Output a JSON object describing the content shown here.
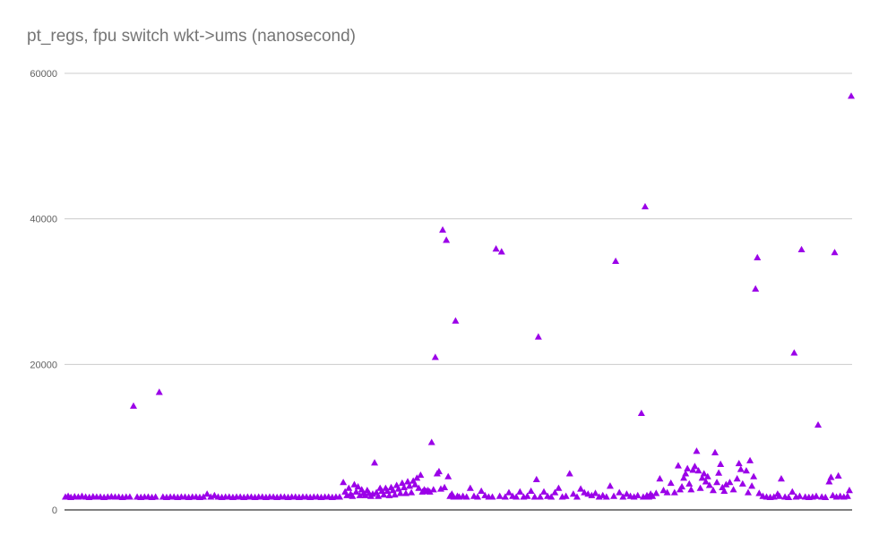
{
  "chart_data": {
    "type": "scatter",
    "title": "pt_regs, fpu switch wkt->ums (nanosecond)",
    "xlabel": "",
    "ylabel": "",
    "ylim": [
      0,
      60000
    ],
    "yticks": [
      "0",
      "20000",
      "40000",
      "60000"
    ],
    "grid": true,
    "legend": "none",
    "marker": "triangle",
    "color": "#9b00e8",
    "series": [
      {
        "values": [
          [
            0,
            1800
          ],
          [
            3,
            1900
          ],
          [
            6,
            1750
          ],
          [
            10,
            1850
          ],
          [
            14,
            1800
          ],
          [
            18,
            1900
          ],
          [
            22,
            1800
          ],
          [
            26,
            1750
          ],
          [
            30,
            1850
          ],
          [
            34,
            1800
          ],
          [
            38,
            1800
          ],
          [
            42,
            1750
          ],
          [
            46,
            1800
          ],
          [
            50,
            1850
          ],
          [
            54,
            1800
          ],
          [
            58,
            1800
          ],
          [
            62,
            1750
          ],
          [
            66,
            1800
          ],
          [
            70,
            1800
          ],
          [
            74,
            14300
          ],
          [
            78,
            1800
          ],
          [
            82,
            1750
          ],
          [
            86,
            1800
          ],
          [
            90,
            1800
          ],
          [
            94,
            1750
          ],
          [
            98,
            1800
          ],
          [
            102,
            16200
          ],
          [
            106,
            1800
          ],
          [
            110,
            1750
          ],
          [
            114,
            1800
          ],
          [
            118,
            1800
          ],
          [
            122,
            1750
          ],
          [
            126,
            1800
          ],
          [
            130,
            1800
          ],
          [
            134,
            1750
          ],
          [
            138,
            1800
          ],
          [
            142,
            1800
          ],
          [
            146,
            1750
          ],
          [
            150,
            1800
          ],
          [
            154,
            2200
          ],
          [
            158,
            1800
          ],
          [
            162,
            2000
          ],
          [
            166,
            1800
          ],
          [
            170,
            1750
          ],
          [
            174,
            1800
          ],
          [
            178,
            1800
          ],
          [
            182,
            1750
          ],
          [
            186,
            1800
          ],
          [
            190,
            1800
          ],
          [
            194,
            1750
          ],
          [
            198,
            1800
          ],
          [
            202,
            1800
          ],
          [
            206,
            1750
          ],
          [
            210,
            1800
          ],
          [
            214,
            1800
          ],
          [
            218,
            1750
          ],
          [
            222,
            1800
          ],
          [
            226,
            1800
          ],
          [
            230,
            1750
          ],
          [
            234,
            1800
          ],
          [
            238,
            1800
          ],
          [
            242,
            1750
          ],
          [
            246,
            1800
          ],
          [
            250,
            1800
          ],
          [
            254,
            1750
          ],
          [
            258,
            1800
          ],
          [
            262,
            1800
          ],
          [
            266,
            1750
          ],
          [
            270,
            1800
          ],
          [
            274,
            1800
          ],
          [
            278,
            1750
          ],
          [
            282,
            1800
          ],
          [
            286,
            1800
          ],
          [
            290,
            1750
          ],
          [
            294,
            1800
          ],
          [
            298,
            1800
          ],
          [
            302,
            3800
          ],
          [
            304,
            2500
          ],
          [
            306,
            2000
          ],
          [
            308,
            3000
          ],
          [
            310,
            2200
          ],
          [
            312,
            1900
          ],
          [
            314,
            3500
          ],
          [
            316,
            2500
          ],
          [
            318,
            3200
          ],
          [
            320,
            2000
          ],
          [
            322,
            2800
          ],
          [
            324,
            2300
          ],
          [
            326,
            2000
          ],
          [
            328,
            2700
          ],
          [
            330,
            2300
          ],
          [
            332,
            1900
          ],
          [
            334,
            2200
          ],
          [
            336,
            6500
          ],
          [
            338,
            2400
          ],
          [
            340,
            1900
          ],
          [
            342,
            3000
          ],
          [
            344,
            2600
          ],
          [
            346,
            2100
          ],
          [
            348,
            3000
          ],
          [
            350,
            2600
          ],
          [
            352,
            2000
          ],
          [
            354,
            3100
          ],
          [
            356,
            2700
          ],
          [
            358,
            2100
          ],
          [
            360,
            3400
          ],
          [
            362,
            2900
          ],
          [
            364,
            2300
          ],
          [
            366,
            3700
          ],
          [
            368,
            3100
          ],
          [
            370,
            2300
          ],
          [
            372,
            3900
          ],
          [
            374,
            3300
          ],
          [
            376,
            2400
          ],
          [
            378,
            4000
          ],
          [
            380,
            3500
          ],
          [
            382,
            4400
          ],
          [
            384,
            3000
          ],
          [
            386,
            4800
          ],
          [
            388,
            2500
          ],
          [
            390,
            2800
          ],
          [
            392,
            2600
          ],
          [
            394,
            2700
          ],
          [
            396,
            2500
          ],
          [
            398,
            9300
          ],
          [
            400,
            2800
          ],
          [
            402,
            21000
          ],
          [
            404,
            5000
          ],
          [
            406,
            5300
          ],
          [
            408,
            2900
          ],
          [
            410,
            38500
          ],
          [
            412,
            3100
          ],
          [
            414,
            37100
          ],
          [
            416,
            4600
          ],
          [
            418,
            1900
          ],
          [
            420,
            2200
          ],
          [
            422,
            1800
          ],
          [
            424,
            26000
          ],
          [
            426,
            1900
          ],
          [
            428,
            1800
          ],
          [
            432,
            1900
          ],
          [
            436,
            1800
          ],
          [
            440,
            3000
          ],
          [
            444,
            1900
          ],
          [
            448,
            1800
          ],
          [
            452,
            2600
          ],
          [
            456,
            2000
          ],
          [
            460,
            1800
          ],
          [
            464,
            1800
          ],
          [
            468,
            35900
          ],
          [
            472,
            1900
          ],
          [
            474,
            35500
          ],
          [
            478,
            1800
          ],
          [
            482,
            2400
          ],
          [
            486,
            1900
          ],
          [
            490,
            1800
          ],
          [
            494,
            2500
          ],
          [
            498,
            1800
          ],
          [
            502,
            1900
          ],
          [
            506,
            2600
          ],
          [
            510,
            1800
          ],
          [
            512,
            4200
          ],
          [
            514,
            23800
          ],
          [
            516,
            1800
          ],
          [
            520,
            2500
          ],
          [
            524,
            1900
          ],
          [
            528,
            1800
          ],
          [
            532,
            2400
          ],
          [
            536,
            3000
          ],
          [
            540,
            1800
          ],
          [
            544,
            1900
          ],
          [
            548,
            5000
          ],
          [
            552,
            2200
          ],
          [
            556,
            1800
          ],
          [
            560,
            2900
          ],
          [
            564,
            2400
          ],
          [
            568,
            2200
          ],
          [
            572,
            2000
          ],
          [
            576,
            2300
          ],
          [
            580,
            1800
          ],
          [
            584,
            2000
          ],
          [
            588,
            1800
          ],
          [
            592,
            3300
          ],
          [
            596,
            1900
          ],
          [
            598,
            34200
          ],
          [
            602,
            2400
          ],
          [
            606,
            1800
          ],
          [
            610,
            2200
          ],
          [
            614,
            1900
          ],
          [
            618,
            1800
          ],
          [
            622,
            2000
          ],
          [
            626,
            13300
          ],
          [
            628,
            1800
          ],
          [
            630,
            41700
          ],
          [
            632,
            2000
          ],
          [
            634,
            1800
          ],
          [
            636,
            2200
          ],
          [
            638,
            1900
          ],
          [
            642,
            2300
          ],
          [
            646,
            4300
          ],
          [
            650,
            2700
          ],
          [
            654,
            2400
          ],
          [
            658,
            3700
          ],
          [
            662,
            2400
          ],
          [
            666,
            6100
          ],
          [
            668,
            2800
          ],
          [
            670,
            3200
          ],
          [
            672,
            4400
          ],
          [
            674,
            5000
          ],
          [
            676,
            5700
          ],
          [
            678,
            3600
          ],
          [
            680,
            2800
          ],
          [
            682,
            5500
          ],
          [
            684,
            6000
          ],
          [
            686,
            8100
          ],
          [
            688,
            5400
          ],
          [
            690,
            3000
          ],
          [
            692,
            4400
          ],
          [
            694,
            5000
          ],
          [
            696,
            3900
          ],
          [
            698,
            4600
          ],
          [
            700,
            3400
          ],
          [
            704,
            2700
          ],
          [
            706,
            7900
          ],
          [
            708,
            3800
          ],
          [
            710,
            5100
          ],
          [
            712,
            6300
          ],
          [
            714,
            3100
          ],
          [
            716,
            2600
          ],
          [
            718,
            3500
          ],
          [
            722,
            3800
          ],
          [
            726,
            2800
          ],
          [
            730,
            4300
          ],
          [
            732,
            6400
          ],
          [
            734,
            5600
          ],
          [
            736,
            3600
          ],
          [
            740,
            5400
          ],
          [
            742,
            2400
          ],
          [
            744,
            6800
          ],
          [
            746,
            3300
          ],
          [
            748,
            4600
          ],
          [
            750,
            30400
          ],
          [
            752,
            34700
          ],
          [
            754,
            2300
          ],
          [
            758,
            1900
          ],
          [
            762,
            1800
          ],
          [
            766,
            1750
          ],
          [
            770,
            1800
          ],
          [
            774,
            2200
          ],
          [
            776,
            1900
          ],
          [
            778,
            4300
          ],
          [
            782,
            1800
          ],
          [
            786,
            1750
          ],
          [
            790,
            2500
          ],
          [
            792,
            21600
          ],
          [
            794,
            1800
          ],
          [
            798,
            1900
          ],
          [
            800,
            35800
          ],
          [
            804,
            1800
          ],
          [
            808,
            1750
          ],
          [
            812,
            1800
          ],
          [
            816,
            1900
          ],
          [
            818,
            11700
          ],
          [
            822,
            1800
          ],
          [
            826,
            1750
          ],
          [
            830,
            3900
          ],
          [
            832,
            4500
          ],
          [
            834,
            2000
          ],
          [
            836,
            35400
          ],
          [
            838,
            1800
          ],
          [
            840,
            4700
          ],
          [
            842,
            1900
          ],
          [
            846,
            1800
          ],
          [
            850,
            1900
          ],
          [
            852,
            2700
          ],
          [
            854,
            56900
          ]
        ]
      }
    ]
  }
}
